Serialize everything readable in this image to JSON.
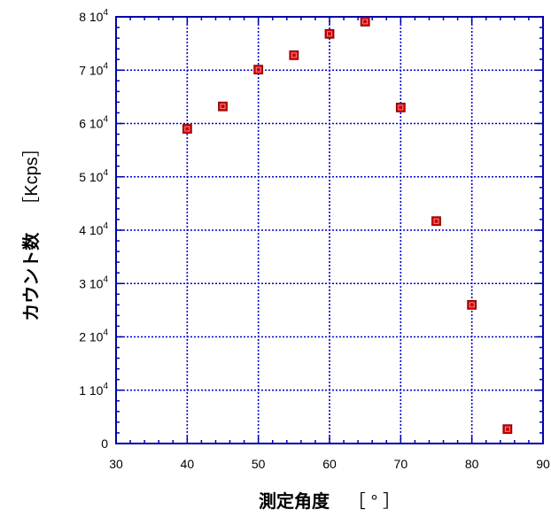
{
  "chart_data": {
    "type": "scatter",
    "xlabel": "測定角度",
    "xunit": "［ ° ］",
    "ylabel": "カウント数",
    "yunit": "［Kcps］",
    "xlim": [
      30,
      90
    ],
    "ylim": [
      0,
      80000
    ],
    "x_ticks": [
      30,
      40,
      50,
      60,
      70,
      80,
      90
    ],
    "x_tick_labels": [
      "30",
      "40",
      "50",
      "60",
      "70",
      "80",
      "90"
    ],
    "y_ticks": [
      0,
      10000,
      20000,
      30000,
      40000,
      50000,
      60000,
      70000,
      80000
    ],
    "y_tick_labels": [
      {
        "mantissa": "0",
        "exponent": ""
      },
      {
        "mantissa": "1 10",
        "exponent": "4"
      },
      {
        "mantissa": "2 10",
        "exponent": "4"
      },
      {
        "mantissa": "3 10",
        "exponent": "4"
      },
      {
        "mantissa": "4 10",
        "exponent": "4"
      },
      {
        "mantissa": "5 10",
        "exponent": "4"
      },
      {
        "mantissa": "6 10",
        "exponent": "4"
      },
      {
        "mantissa": "7 10",
        "exponent": "4"
      },
      {
        "mantissa": "8 10",
        "exponent": "4"
      }
    ],
    "grid": true,
    "grid_color": "#0000cc",
    "axis_color": "#0000aa",
    "marker_color": "#cc0000",
    "series": [
      {
        "points": [
          {
            "x": 40,
            "y": 59000
          },
          {
            "x": 45,
            "y": 63200
          },
          {
            "x": 50,
            "y": 70100
          },
          {
            "x": 55,
            "y": 72800
          },
          {
            "x": 60,
            "y": 76800
          },
          {
            "x": 65,
            "y": 79100
          },
          {
            "x": 70,
            "y": 63000
          },
          {
            "x": 75,
            "y": 41700
          },
          {
            "x": 80,
            "y": 26000
          },
          {
            "x": 85,
            "y": 2700
          }
        ]
      }
    ]
  }
}
